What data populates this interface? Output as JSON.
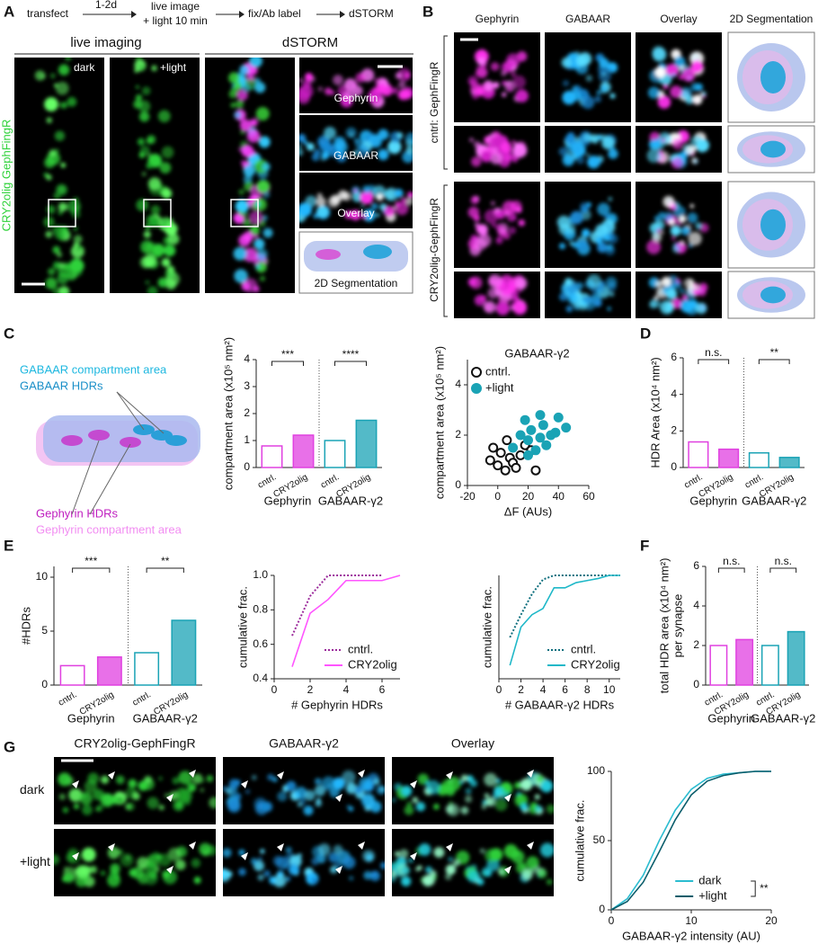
{
  "panel_labels": [
    "A",
    "B",
    "C",
    "D",
    "E",
    "F",
    "G"
  ],
  "panel_a": {
    "workflow": [
      "transfect",
      "1-2d",
      "live image",
      "+ light 10 min",
      "fix/Ab label",
      "dSTORM"
    ],
    "headers": [
      "live imaging",
      "dSTORM"
    ],
    "conditions": [
      "dark",
      "+light"
    ],
    "side_label": "CRY2olig GephFingR",
    "insets": [
      "Gephyrin",
      "GABAAR",
      "Overlay",
      "2D Segmentation"
    ]
  },
  "panel_b": {
    "columns": [
      "Gephyrin",
      "GABAAR",
      "Overlay",
      "2D Segmentation"
    ],
    "rows": [
      "cntrl: GephFingR",
      "CRY2olig-GephFingR"
    ]
  },
  "panel_c": {
    "schematic_labels": [
      "GABAAR compartment area",
      "GABAAR HDRs",
      "Gephyrin HDRs",
      "Gephyrin compartment area"
    ]
  },
  "panel_g": {
    "columns": [
      "CRY2olig-GephFingR",
      "GABAAR-γ2",
      "Overlay"
    ],
    "rows": [
      "dark",
      "+light"
    ]
  },
  "chart_data": [
    {
      "type": "bar",
      "ylabel": [
        "compartment area (x10⁵ nm²)"
      ],
      "categories": [
        "cntrl.",
        "CRY2olig",
        "cntrl.",
        "CRY2olig"
      ],
      "values": [
        0.8,
        1.2,
        1.0,
        1.75
      ],
      "colors": [
        "#e040e0",
        "#e040e0",
        "#1aa3b5",
        "#1aa3b5"
      ],
      "filled": [
        false,
        true,
        false,
        true
      ],
      "groups": [
        "Gephyrin",
        "GABAAR-γ2"
      ],
      "significance": [
        "***",
        "****"
      ],
      "ylim": [
        0,
        4
      ],
      "yticks": [
        0,
        1,
        2,
        3,
        4
      ]
    },
    {
      "type": "scatter",
      "title": "GABAAR-γ2",
      "xlabel": "ΔF (AUs)",
      "ylabel": "compartment area (x10⁵ nm²)",
      "xlim": [
        -20,
        60
      ],
      "xticks": [
        -20,
        0,
        20,
        40,
        60
      ],
      "ylim": [
        0,
        5
      ],
      "yticks": [
        0,
        2,
        4
      ],
      "series": [
        {
          "name": "cntrl.",
          "color": "#111111",
          "filled": false,
          "x": [
            -5,
            0,
            2,
            5,
            8,
            10,
            12,
            15,
            18,
            22,
            25,
            -3,
            6
          ],
          "values": [
            1.0,
            0.8,
            1.3,
            0.6,
            1.1,
            0.9,
            0.7,
            1.2,
            1.6,
            1.4,
            0.6,
            1.5,
            1.8
          ]
        },
        {
          "name": "+light",
          "color": "#1aa3b5",
          "filled": true,
          "x": [
            10,
            15,
            18,
            20,
            22,
            25,
            28,
            30,
            32,
            35,
            38,
            40,
            45,
            20,
            28
          ],
          "values": [
            1.5,
            2.0,
            2.6,
            1.8,
            2.2,
            1.4,
            2.8,
            2.4,
            1.6,
            2.0,
            2.1,
            2.7,
            2.3,
            1.2,
            1.9
          ]
        }
      ]
    },
    {
      "type": "bar",
      "ylabel": [
        "HDR Area (x10⁴ nm²)"
      ],
      "categories": [
        "cntrl.",
        "CRY2olig",
        "cntrl.",
        "CRY2olig"
      ],
      "values": [
        1.4,
        1.0,
        0.8,
        0.55
      ],
      "colors": [
        "#e040e0",
        "#e040e0",
        "#1aa3b5",
        "#1aa3b5"
      ],
      "filled": [
        false,
        true,
        false,
        true
      ],
      "groups": [
        "Gephyrin",
        "GABAAR-γ2"
      ],
      "significance": [
        "n.s.",
        "**"
      ],
      "ylim": [
        0,
        6
      ],
      "yticks": [
        0,
        2,
        4,
        6
      ]
    },
    {
      "type": "bar",
      "ylabel": [
        "#HDRs"
      ],
      "categories": [
        "cntrl.",
        "CRY2olig",
        "cntrl.",
        "CRY2olig"
      ],
      "values": [
        1.8,
        2.6,
        3.0,
        6.0
      ],
      "colors": [
        "#e040e0",
        "#e040e0",
        "#1aa3b5",
        "#1aa3b5"
      ],
      "filled": [
        false,
        true,
        false,
        true
      ],
      "groups": [
        "Gephyrin",
        "GABAAR-γ2"
      ],
      "significance": [
        "***",
        "**"
      ],
      "ylim": [
        0,
        11
      ],
      "yticks": [
        0,
        5,
        10
      ]
    },
    {
      "type": "line",
      "xlabel": "# Gephyrin HDRs",
      "ylabel": "cumulative frac.",
      "xlim": [
        0,
        7
      ],
      "xticks": [
        0,
        2,
        4,
        6
      ],
      "ylim": [
        0.4,
        1.0
      ],
      "yticks": [
        {
          "value": 0.4,
          "label": "0.4"
        },
        {
          "value": 0.6,
          "label": "0.6"
        },
        {
          "value": 0.8,
          "label": "0.8"
        },
        {
          "value": 1.0,
          "label": "1.0"
        }
      ],
      "series": [
        {
          "name": "cntrl.",
          "color": "#9b2a9b",
          "dotted": true,
          "x": [
            1,
            2,
            3,
            4,
            5,
            6
          ],
          "values": [
            0.65,
            0.88,
            1.0,
            1.0,
            1.0,
            1.0
          ]
        },
        {
          "name": "CRY2olig",
          "color": "#ff55ff",
          "dotted": false,
          "x": [
            1,
            2,
            3,
            4,
            5,
            6,
            7
          ],
          "values": [
            0.47,
            0.78,
            0.86,
            0.97,
            0.97,
            0.97,
            1.0
          ]
        }
      ]
    },
    {
      "type": "line",
      "xlabel": "# GABAAR-γ2 HDRs",
      "ylabel": "cumulative frac.",
      "xlim": [
        0,
        11
      ],
      "xticks": [
        0,
        2,
        4,
        6,
        8,
        10
      ],
      "ylim": [
        0.0,
        1.0
      ],
      "series": [
        {
          "name": "cntrl.",
          "color": "#0d6e7d",
          "dotted": true,
          "x": [
            1,
            2,
            3,
            4,
            5,
            6,
            7,
            8,
            9,
            10,
            11
          ],
          "values": [
            0.4,
            0.62,
            0.82,
            0.96,
            1.0,
            1.0,
            1.0,
            1.0,
            1.0,
            1.0,
            1.0
          ]
        },
        {
          "name": "CRY2olig",
          "color": "#1fb8c8",
          "dotted": false,
          "x": [
            1,
            2,
            3,
            4,
            5,
            6,
            7,
            8,
            9,
            10,
            11
          ],
          "values": [
            0.13,
            0.5,
            0.62,
            0.68,
            0.88,
            0.88,
            0.93,
            0.95,
            0.97,
            1.0,
            1.0
          ]
        }
      ]
    },
    {
      "type": "bar",
      "ylabel": [
        "total HDR area (x10⁴ nm²)",
        "per synapse"
      ],
      "categories": [
        "cntrl.",
        "CRY2olig",
        "cntrl.",
        "CRY2olig"
      ],
      "values": [
        2.0,
        2.3,
        2.0,
        2.7
      ],
      "colors": [
        "#e040e0",
        "#e040e0",
        "#1aa3b5",
        "#1aa3b5"
      ],
      "filled": [
        false,
        true,
        false,
        true
      ],
      "groups": [
        "Gephyrin",
        "GABAAR-γ2"
      ],
      "significance": [
        "n.s.",
        "n.s."
      ],
      "ylim": [
        0,
        6
      ],
      "yticks": [
        0,
        2,
        4,
        6
      ]
    },
    {
      "type": "line",
      "xlabel": "GABAAR-γ2 intensity (AU)",
      "ylabel": "cumulative frac.",
      "xlim": [
        0,
        20
      ],
      "xticks": [
        0,
        10,
        20
      ],
      "ylim": [
        0,
        100
      ],
      "yticks": [
        0,
        50,
        100
      ],
      "significance": "**",
      "series": [
        {
          "name": "dark",
          "color": "#2bbcd0",
          "dotted": false,
          "x": [
            0,
            2,
            4,
            6,
            8,
            10,
            12,
            14,
            16,
            18,
            20
          ],
          "values": [
            0,
            8,
            25,
            50,
            72,
            87,
            95,
            98,
            99,
            100,
            100
          ]
        },
        {
          "name": "+light",
          "color": "#0b5d6b",
          "dotted": false,
          "x": [
            0,
            2,
            4,
            6,
            8,
            10,
            12,
            14,
            16,
            18,
            20
          ],
          "values": [
            0,
            6,
            20,
            42,
            65,
            83,
            93,
            97,
            99,
            100,
            100
          ]
        }
      ]
    }
  ]
}
